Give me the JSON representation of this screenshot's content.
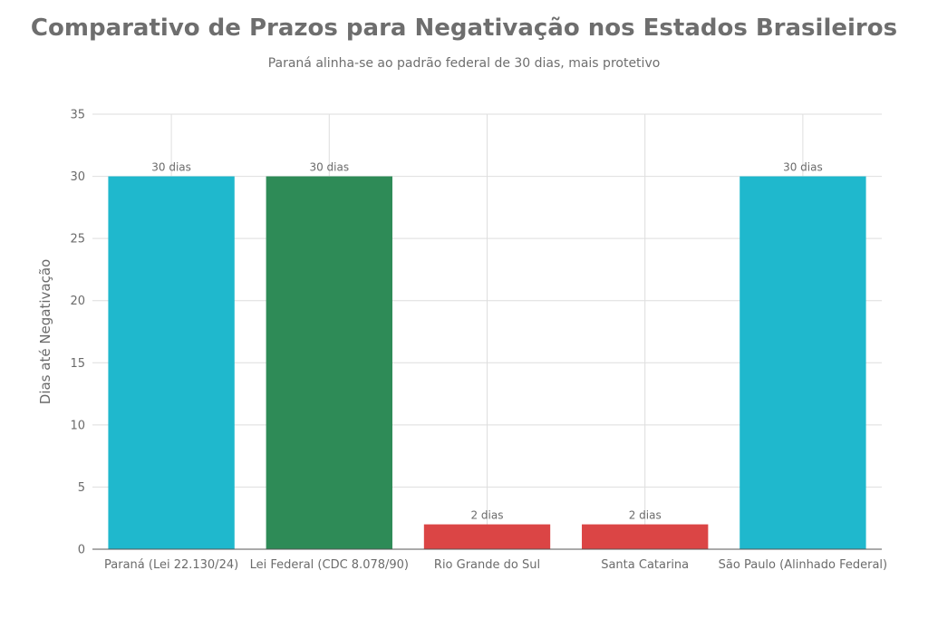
{
  "chart_data": {
    "type": "bar",
    "title": "Comparativo de Prazos para Negativação nos Estados Brasileiros",
    "subtitle": "Paraná alinha-se ao padrão federal de 30 dias, mais protetivo",
    "xlabel": "",
    "ylabel": "Dias até Negativação",
    "ylim": [
      0,
      35
    ],
    "yticks": [
      0,
      5,
      10,
      15,
      20,
      25,
      30,
      35
    ],
    "grid": true,
    "categories": [
      "Paraná (Lei 22.130/24)",
      "Lei Federal (CDC 8.078/90)",
      "Rio Grande do Sul",
      "Santa Catarina",
      "São Paulo (Alinhado Federal)"
    ],
    "values": [
      30,
      30,
      2,
      2,
      30
    ],
    "data_labels": [
      "30 dias",
      "30 dias",
      "2 dias",
      "2 dias",
      "30 dias"
    ],
    "colors": [
      "#1fb8cd",
      "#2e8b57",
      "#db4545",
      "#db4545",
      "#1fb8cd"
    ]
  }
}
